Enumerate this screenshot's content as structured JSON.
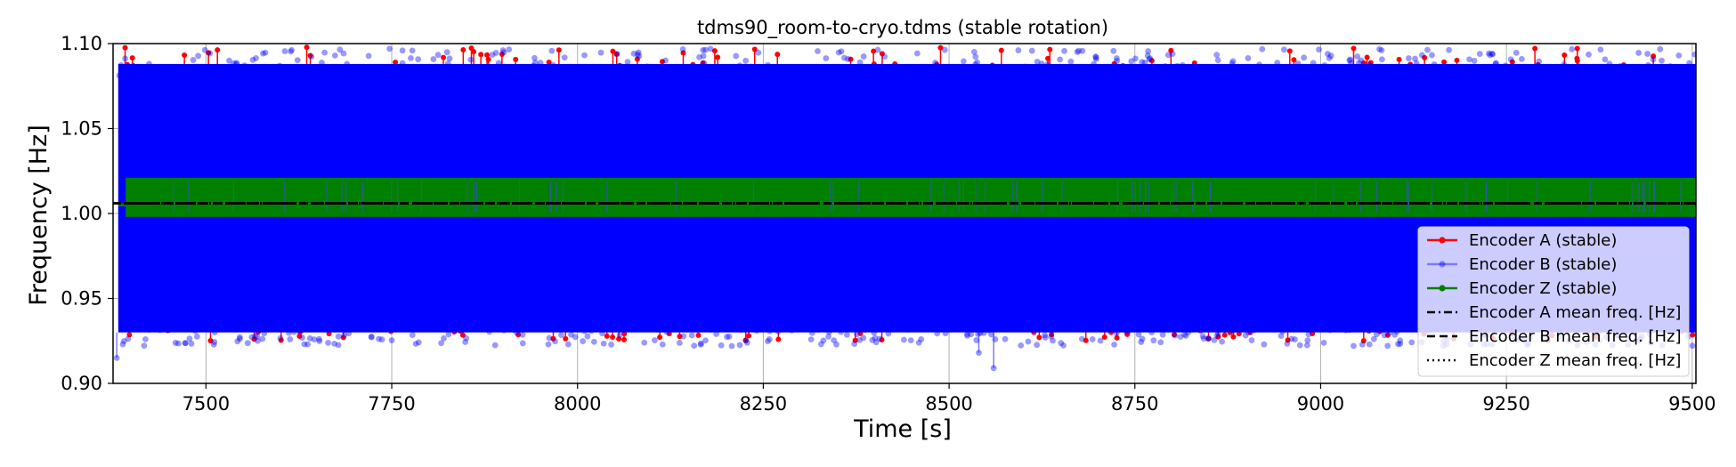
{
  "chart_data": {
    "type": "line",
    "title": "tdms90_room-to-cryo.tdms (stable rotation)",
    "xlabel": "Time [s]",
    "ylabel": "Frequency [Hz]",
    "xlim": [
      7375,
      9505
    ],
    "ylim": [
      0.9,
      1.1
    ],
    "xticks": [
      7500,
      7750,
      8000,
      8250,
      8500,
      8750,
      9000,
      9250,
      9500
    ],
    "yticks": [
      0.9,
      0.95,
      1.0,
      1.05,
      1.1
    ],
    "ytick_labels": [
      "0.90",
      "0.95",
      "1.00",
      "1.05",
      "1.10"
    ],
    "grid": true,
    "legend_position": "lower right",
    "series": [
      {
        "name": "Encoder A (stable)",
        "kind": "markers-line",
        "color": "#ff0000",
        "band": [
          0.925,
          1.098
        ],
        "note_values": "dense noisy samples around mean",
        "mean": 1.006
      },
      {
        "name": "Encoder B (stable)",
        "kind": "markers-line",
        "color": "#0000ff",
        "alpha": 0.4,
        "band": [
          0.922,
          1.097
        ],
        "mean": 1.006
      },
      {
        "name": "Encoder Z (stable)",
        "kind": "markers-line",
        "color": "#008000",
        "band": [
          0.998,
          1.021
        ],
        "mean": 1.006
      },
      {
        "name": "Encoder A mean freq. [Hz]",
        "kind": "dashdot",
        "color": "#000000",
        "value": 1.006
      },
      {
        "name": "Encoder B mean freq. [Hz]",
        "kind": "dashed",
        "color": "#000000",
        "value": 1.006
      },
      {
        "name": "Encoder Z mean freq. [Hz]",
        "kind": "dotted",
        "color": "#000000",
        "value": 1.006
      }
    ]
  }
}
